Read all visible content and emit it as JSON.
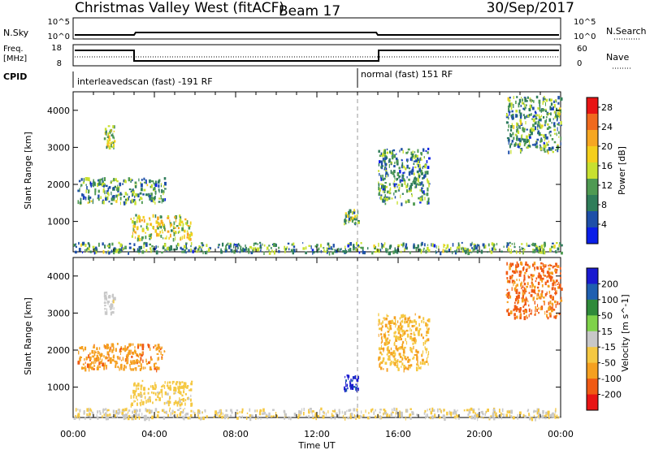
{
  "header": {
    "station": "Christmas Valley West (fitACF)",
    "beam": "Beam 17",
    "date": "30/Sep/2017"
  },
  "top_panels": {
    "nsky": {
      "label": "N.Sky",
      "left_ticks": [
        "10^5",
        "10^0"
      ],
      "right_ticks": [
        "10^5",
        "10^0"
      ],
      "right_label": "N.Search"
    },
    "freq": {
      "label_line1": "Freq.",
      "label_line2": "[MHz]",
      "left_ticks": [
        "18",
        "8"
      ],
      "right_ticks": [
        "60",
        "0"
      ],
      "right_label": "Nave"
    },
    "cpid": {
      "label": "CPID",
      "segments": [
        "interleavedscan (fast) -191 RF",
        "normal (fast) 151 RF"
      ]
    }
  },
  "colors": {
    "power_scale": [
      "#0a1ee8",
      "#1e4fa8",
      "#2f7d5a",
      "#4f9a52",
      "#c8e030",
      "#f4cf1c",
      "#f7a722",
      "#f06a1e",
      "#e81414"
    ],
    "velocity_scale": [
      "#e81414",
      "#f05a14",
      "#f5a020",
      "#f5c842",
      "#c8c8c8",
      "#7fd24a",
      "#2f8a3a",
      "#1f5fb0",
      "#1a1ad0"
    ],
    "sea_scatter_velocity": "#c8c8c8"
  },
  "chart_data": [
    {
      "type": "heatmap",
      "name": "power",
      "xlabel": "",
      "ylabel": "Slant Range [km]",
      "xlim": [
        0,
        24
      ],
      "ylim": [
        180,
        4500
      ],
      "yticks": [
        "1000",
        "2000",
        "3000",
        "4000"
      ],
      "colorbar": {
        "label": "Power [dB]",
        "ticks": [
          "4",
          "8",
          "12",
          "16",
          "20",
          "24",
          "28"
        ],
        "range": [
          0,
          30
        ]
      },
      "echo_regions": [
        {
          "t_start": 0.0,
          "t_end": 24.0,
          "range_min": 180,
          "range_max": 450,
          "level": 10
        },
        {
          "t_start": 1.5,
          "t_end": 2.0,
          "range_min": 3000,
          "range_max": 3600,
          "level": 14
        },
        {
          "t_start": 0.2,
          "t_end": 4.5,
          "range_min": 1500,
          "range_max": 2200,
          "level": 10
        },
        {
          "t_start": 2.8,
          "t_end": 5.8,
          "range_min": 550,
          "range_max": 1200,
          "level": 16
        },
        {
          "t_start": 13.3,
          "t_end": 14.0,
          "range_min": 950,
          "range_max": 1350,
          "level": 12
        },
        {
          "t_start": 15.0,
          "t_end": 17.5,
          "range_min": 1500,
          "range_max": 3000,
          "level": 9
        },
        {
          "t_start": 21.3,
          "t_end": 24.0,
          "range_min": 2900,
          "range_max": 4400,
          "level": 10
        }
      ]
    },
    {
      "type": "heatmap",
      "name": "velocity",
      "xlabel": "Time UT",
      "ylabel": "Slant Range [km]",
      "xlim": [
        0,
        24
      ],
      "ylim": [
        180,
        4500
      ],
      "xticks": [
        "00:00",
        "04:00",
        "08:00",
        "12:00",
        "16:00",
        "20:00",
        "00:00"
      ],
      "yticks": [
        "1000",
        "2000",
        "3000",
        "4000"
      ],
      "colorbar": {
        "label": "Velocity [m s^-1]",
        "ticks": [
          "200",
          "100",
          "50",
          "15",
          "-15",
          "-50",
          "-100",
          "-200"
        ],
        "range": [
          -250,
          250
        ]
      },
      "echo_regions": [
        {
          "t_start": 0.0,
          "t_end": 24.0,
          "range_min": 180,
          "range_max": 450,
          "level": -30
        },
        {
          "t_start": 1.5,
          "t_end": 2.0,
          "range_min": 3000,
          "range_max": 3600,
          "level": 0
        },
        {
          "t_start": 0.2,
          "t_end": 4.5,
          "range_min": 1500,
          "range_max": 2200,
          "level": -120
        },
        {
          "t_start": 2.8,
          "t_end": 5.8,
          "range_min": 550,
          "range_max": 1200,
          "level": -50
        },
        {
          "t_start": 13.3,
          "t_end": 14.0,
          "range_min": 950,
          "range_max": 1350,
          "level": 200
        },
        {
          "t_start": 15.0,
          "t_end": 17.5,
          "range_min": 1500,
          "range_max": 3000,
          "level": -80
        },
        {
          "t_start": 21.3,
          "t_end": 24.0,
          "range_min": 2900,
          "range_max": 4400,
          "level": -150
        }
      ]
    }
  ]
}
